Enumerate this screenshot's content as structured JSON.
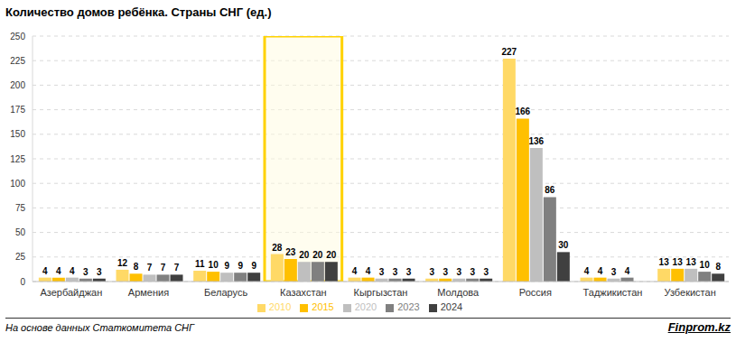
{
  "chart_data": {
    "type": "bar",
    "title": "Количество домов ребёнка. Страны СНГ (ед.)",
    "annotations": [
      "На основе данных Статкомитета СНГ",
      "Finprom.kz"
    ],
    "categories": [
      "Азербайджан",
      "Армения",
      "Беларусь",
      "Казахстан",
      "Кыргызстан",
      "Молдова",
      "Россия",
      "Таджикистан",
      "Узбекистан"
    ],
    "series": [
      {
        "name": "2010",
        "color": "#ffd966",
        "values": [
          4,
          12,
          11,
          28,
          4,
          3,
          227,
          4,
          13
        ]
      },
      {
        "name": "2015",
        "color": "#ffc000",
        "values": [
          4,
          8,
          10,
          23,
          4,
          3,
          166,
          4,
          13
        ]
      },
      {
        "name": "2020",
        "color": "#bfbfbf",
        "values": [
          4,
          7,
          9,
          20,
          3,
          3,
          136,
          3,
          13
        ]
      },
      {
        "name": "2023",
        "color": "#808080",
        "values": [
          3,
          7,
          9,
          20,
          3,
          3,
          86,
          4,
          10
        ]
      },
      {
        "name": "2024",
        "color": "#404040",
        "values": [
          3,
          7,
          9,
          20,
          3,
          3,
          30,
          null,
          8
        ]
      }
    ],
    "ylim": [
      0,
      250
    ],
    "yticks": [
      0,
      25,
      50,
      75,
      100,
      125,
      150,
      175,
      200,
      225,
      250
    ],
    "grid": true,
    "legend": "bottom",
    "data_labels": true
  }
}
